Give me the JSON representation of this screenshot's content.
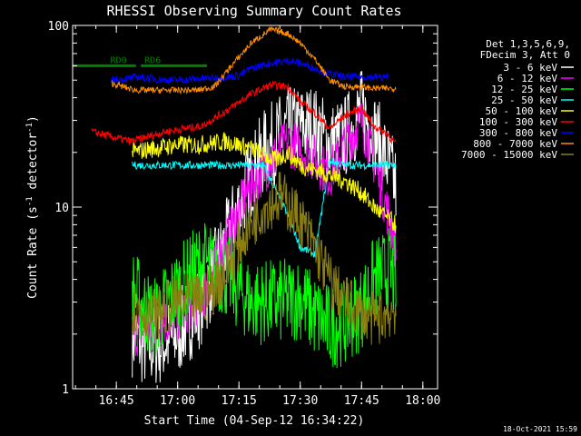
{
  "chart_data": {
    "type": "line",
    "title": "RHESSI Observing Summary Count Rates",
    "xlabel": "Start Time (04-Sep-12 16:34:22)",
    "ylabel_main": "Count Rate (s",
    "ylabel_sup1": "-1",
    "ylabel_mid": " detector",
    "ylabel_sup2": "-1",
    "ylabel_end": ")",
    "footer": "18-Oct-2021 15:59",
    "yscale": "log",
    "ylim": [
      1,
      100
    ],
    "xlim": [
      16.5717,
      18.06
    ],
    "x_ticks": [
      {
        "label": "16:45",
        "value": 16.75
      },
      {
        "label": "17:00",
        "value": 17.0
      },
      {
        "label": "17:15",
        "value": 17.25
      },
      {
        "label": "17:30",
        "value": 17.5
      },
      {
        "label": "17:45",
        "value": 17.75
      },
      {
        "label": "18:00",
        "value": 18.0
      }
    ],
    "y_ticks": [
      {
        "label": "1",
        "value": 1
      },
      {
        "label": "10",
        "value": 10
      },
      {
        "label": "100",
        "value": 100
      }
    ],
    "legend_header": [
      "Det 1,3,5,6,9,",
      "FDecim 3, Att 0"
    ],
    "legend_position": "right",
    "bands": [
      {
        "name": "3 - 6 keV",
        "color": "#ffffff",
        "x": [
          16.815,
          16.87,
          16.95,
          17.0,
          17.1,
          17.2,
          17.28,
          17.35,
          17.45,
          17.55,
          17.62,
          17.68,
          17.75,
          17.8,
          17.86,
          17.89
        ],
        "y": [
          2.0,
          1.7,
          1.8,
          2.0,
          3.0,
          6.5,
          13,
          20,
          27,
          28,
          22,
          24,
          34,
          26,
          17,
          13
        ]
      },
      {
        "name": "6 - 12 keV",
        "color": "#ff00ff",
        "x": [
          16.815,
          16.9,
          17.0,
          17.1,
          17.2,
          17.28,
          17.35,
          17.45,
          17.55,
          17.62,
          17.68,
          17.75,
          17.8,
          17.86,
          17.89
        ],
        "y": [
          2.0,
          2.2,
          2.5,
          3.2,
          6.5,
          12,
          16,
          23,
          19,
          15,
          22,
          30,
          18,
          9,
          6
        ]
      },
      {
        "name": "12 - 25 keV",
        "color": "#00ff00",
        "x": [
          16.815,
          16.9,
          17.0,
          17.1,
          17.2,
          17.3,
          17.42,
          17.5,
          17.56,
          17.62,
          17.68,
          17.75,
          17.8,
          17.86,
          17.89
        ],
        "y": [
          3.5,
          2.4,
          3.5,
          5,
          4.2,
          3.0,
          3.0,
          3.2,
          2.5,
          2.2,
          2.3,
          2.8,
          4,
          4.5,
          4
        ]
      },
      {
        "name": "25 - 50 keV",
        "color": "#00ffff",
        "x": [
          16.815,
          16.86,
          17.0,
          17.1,
          17.25,
          17.35,
          17.45,
          17.5,
          17.56,
          17.62,
          17.68,
          17.75,
          17.8,
          17.89
        ],
        "y": [
          17,
          17,
          17,
          17,
          17,
          17,
          9,
          6,
          5.5,
          18,
          17,
          17,
          17,
          17
        ]
      },
      {
        "name": "50 - 100 keV",
        "color": "#ffff00",
        "x": [
          16.815,
          16.9,
          17.0,
          17.08,
          17.2,
          17.3,
          17.4,
          17.45,
          17.5,
          17.56,
          17.62,
          17.68,
          17.75,
          17.8,
          17.89
        ],
        "y": [
          20,
          21,
          22,
          22,
          23,
          21,
          18,
          20,
          17,
          16,
          15,
          14,
          12,
          10,
          8
        ]
      },
      {
        "name": "100 - 300 keV",
        "color": "#ff0000",
        "x": [
          16.65,
          16.75,
          16.81,
          16.95,
          17.1,
          17.2,
          17.3,
          17.38,
          17.45,
          17.5,
          17.56,
          17.62,
          17.68,
          17.75,
          17.8,
          17.86,
          17.89
        ],
        "y": [
          26,
          24,
          23,
          26,
          28,
          34,
          42,
          47,
          46,
          38,
          33,
          27,
          32,
          35,
          28,
          25,
          22
        ]
      },
      {
        "name": "300 - 800 keV",
        "color": "#0000ff",
        "x": [
          16.73,
          16.8,
          16.83,
          16.95,
          17.0,
          17.1,
          17.2,
          17.25,
          17.3,
          17.38,
          17.45,
          17.5,
          17.56,
          17.62,
          17.68,
          17.75,
          17.8,
          17.86
        ],
        "y": [
          50,
          51,
          52,
          50,
          50,
          51,
          52,
          53,
          58,
          62,
          64,
          62,
          58,
          54,
          52,
          52,
          52,
          52
        ]
      },
      {
        "name": "800 - 7000 keV",
        "color": "#ff8c00",
        "x": [
          16.73,
          16.8,
          16.83,
          16.9,
          17.0,
          17.08,
          17.15,
          17.22,
          17.3,
          17.38,
          17.45,
          17.5,
          17.56,
          17.62,
          17.68,
          17.75,
          17.8,
          17.86,
          17.89
        ],
        "y": [
          48,
          45,
          44,
          44,
          44,
          44,
          46,
          60,
          80,
          95,
          90,
          80,
          65,
          50,
          46,
          46,
          45,
          45,
          45
        ]
      },
      {
        "name": "7000 - 15000 keV",
        "color": "#8b7f12",
        "x": [
          16.815,
          16.9,
          17.0,
          17.1,
          17.2,
          17.28,
          17.35,
          17.42,
          17.5,
          17.56,
          17.62,
          17.68,
          17.75,
          17.8,
          17.86,
          17.89
        ],
        "y": [
          2.8,
          2.6,
          3.0,
          3.1,
          4.5,
          7.5,
          10,
          11.5,
          8.5,
          6,
          4,
          3.0,
          2.6,
          2.4,
          2.6,
          2.8
        ]
      }
    ],
    "attenuator_levels": [
      {
        "name": "RD0",
        "color": "#008000",
        "x": [
          16.57,
          16.83
        ],
        "y": 60,
        "label": "RD0"
      },
      {
        "name": "RD6",
        "color": "#008000",
        "x": [
          16.85,
          17.12
        ],
        "y": 60,
        "label": "RD6"
      }
    ]
  }
}
